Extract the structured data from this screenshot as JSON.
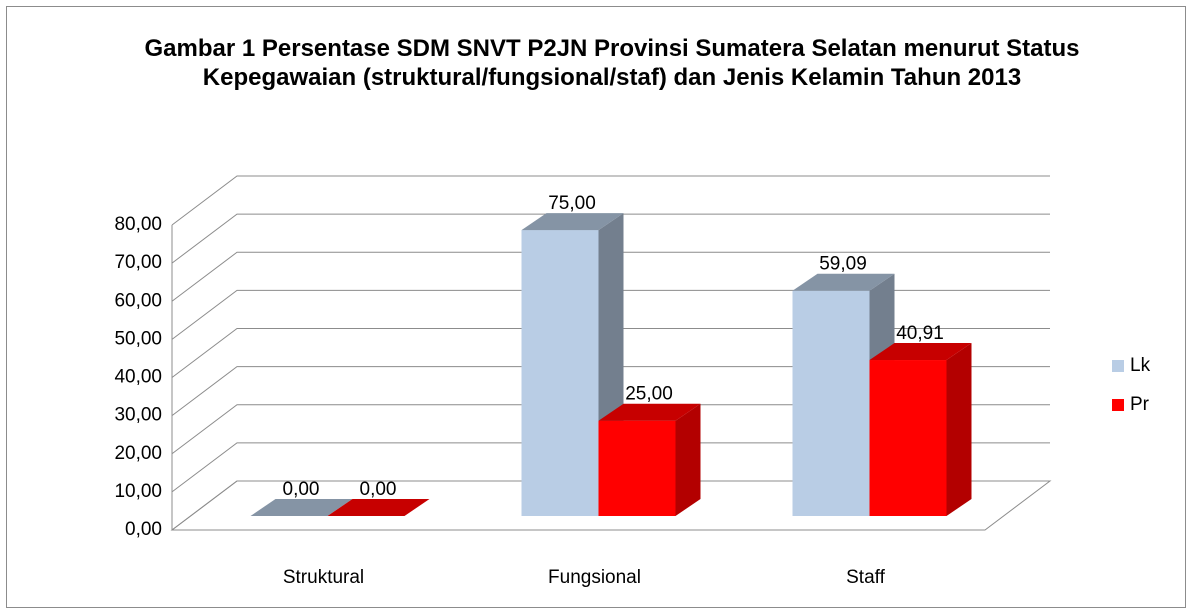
{
  "chart_data": {
    "type": "bar3d",
    "title": "Gambar 1 Persentase SDM SNVT P2JN Provinsi Sumatera Selatan menurut Status Kepegawaian (struktural/fungsional/staf) dan Jenis Kelamin Tahun 2013",
    "categories": [
      "Struktural",
      "Fungsional",
      "Staff"
    ],
    "series": [
      {
        "name": "Lk",
        "color": "#b9cde5",
        "values": [
          0,
          75,
          59.09
        ],
        "value_labels": [
          "0,00",
          "75,00",
          "59,09"
        ]
      },
      {
        "name": "Pr",
        "color": "#ff0000",
        "values": [
          0,
          25,
          40.91
        ],
        "value_labels": [
          "0,00",
          "25,00",
          "40,91"
        ]
      }
    ],
    "ylim": [
      0,
      80
    ],
    "yticks": [
      {
        "value": 0,
        "label": "0,00"
      },
      {
        "value": 10,
        "label": "10,00"
      },
      {
        "value": 20,
        "label": "20,00"
      },
      {
        "value": 30,
        "label": "30,00"
      },
      {
        "value": 40,
        "label": "40,00"
      },
      {
        "value": 50,
        "label": "50,00"
      },
      {
        "value": 60,
        "label": "60,00"
      },
      {
        "value": 70,
        "label": "70,00"
      },
      {
        "value": 80,
        "label": "80,00"
      }
    ],
    "grid": true,
    "legend": "right"
  }
}
